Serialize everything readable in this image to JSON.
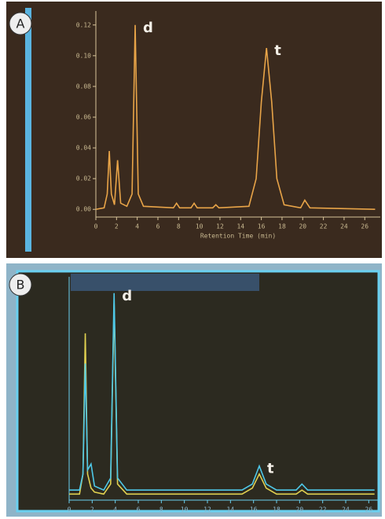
{
  "chart_data": [
    {
      "type": "line",
      "panel_label": "A",
      "xlabel": "Retention Time (min)",
      "x": [
        0,
        0.8,
        1.1,
        1.3,
        1.5,
        1.8,
        2.1,
        2.4,
        3.0,
        3.5,
        3.8,
        4.1,
        4.6,
        7.5,
        7.8,
        8.1,
        9.2,
        9.5,
        9.8,
        11.3,
        11.6,
        11.9,
        14.8,
        15.5,
        16.0,
        16.5,
        17.0,
        17.5,
        18.2,
        19.8,
        20.2,
        20.7,
        27
      ],
      "series": [
        {
          "color": "#e8a448",
          "values": [
            0,
            0.001,
            0.01,
            0.038,
            0.01,
            0.003,
            0.032,
            0.004,
            0.002,
            0.01,
            0.12,
            0.01,
            0.002,
            0.001,
            0.004,
            0.001,
            0.001,
            0.004,
            0.001,
            0.001,
            0.003,
            0.001,
            0.002,
            0.02,
            0.07,
            0.105,
            0.07,
            0.02,
            0.003,
            0.001,
            0.006,
            0.001,
            0
          ]
        }
      ],
      "xlim": [
        0,
        27.5
      ],
      "ylim": [
        -0.005,
        0.125
      ],
      "xticks": [
        0,
        2,
        4,
        6,
        8,
        10,
        12,
        14,
        16,
        18,
        20,
        22,
        24,
        26
      ],
      "yticks": [
        {
          "value": 0,
          "label": "0.00"
        },
        {
          "value": 0.02,
          "label": "0.02"
        },
        {
          "value": 0.04,
          "label": "0.04"
        },
        {
          "value": 0.06,
          "label": "0.06"
        },
        {
          "value": 0.08,
          "label": "0.08"
        },
        {
          "value": 0.1,
          "label": "0.10"
        },
        {
          "value": 0.12,
          "label": "0.12"
        }
      ],
      "annotations": [
        {
          "text": "d",
          "x": 3.8
        },
        {
          "text": "t",
          "x": 16.5
        }
      ]
    },
    {
      "type": "line",
      "panel_label": "B",
      "x": [
        0,
        0.9,
        1.2,
        1.4,
        1.6,
        1.9,
        2.2,
        3.0,
        3.6,
        3.9,
        4.2,
        5.0,
        15.0,
        15.9,
        16.5,
        17.1,
        18.0,
        19.7,
        20.2,
        20.7,
        26.5
      ],
      "series": [
        {
          "color": "#e0d050",
          "values": [
            0,
            0,
            0.1,
            0.8,
            0.1,
            0.03,
            0.01,
            0,
            0.05,
            0.95,
            0.05,
            0,
            0,
            0.03,
            0.1,
            0.03,
            0,
            0,
            0.02,
            0,
            0
          ]
        },
        {
          "color": "#4ec8e8",
          "values": [
            0.02,
            0.02,
            0.1,
            0.65,
            0.12,
            0.15,
            0.04,
            0.02,
            0.08,
            1.0,
            0.08,
            0.02,
            0.02,
            0.05,
            0.14,
            0.05,
            0.02,
            0.02,
            0.05,
            0.02,
            0.02
          ]
        }
      ],
      "xlim": [
        0,
        27
      ],
      "ylim": [
        -0.03,
        1.05
      ],
      "xticks": [
        0,
        2,
        4,
        6,
        8,
        10,
        12,
        14,
        16,
        18,
        20,
        22,
        24,
        26
      ],
      "annotations": [
        {
          "text": "d",
          "x": 3.9
        },
        {
          "text": "t",
          "x": 16.5
        }
      ]
    }
  ]
}
